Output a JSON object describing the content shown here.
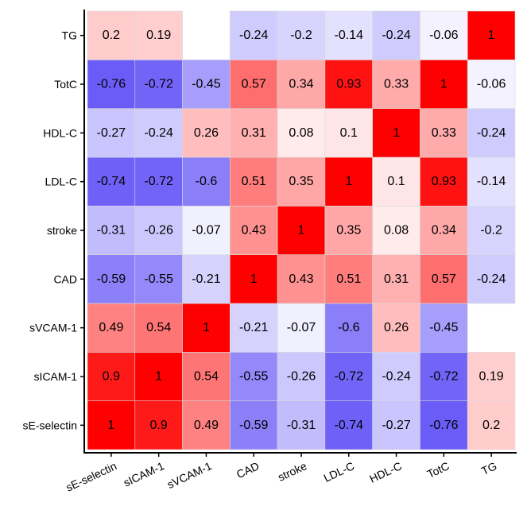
{
  "chart_data": {
    "type": "heatmap",
    "x": [
      "sE-selectin",
      "sICAM-1",
      "sVCAM-1",
      "CAD",
      "stroke",
      "LDL-C",
      "HDL-C",
      "TotC",
      "TG"
    ],
    "y": [
      "sE-selectin",
      "sICAM-1",
      "sVCAM-1",
      "CAD",
      "stroke",
      "LDL-C",
      "HDL-C",
      "TotC",
      "TG"
    ],
    "values": [
      [
        1,
        0.9,
        0.49,
        -0.59,
        -0.31,
        -0.74,
        -0.27,
        -0.76,
        0.2
      ],
      [
        0.9,
        1,
        0.54,
        -0.55,
        -0.26,
        -0.72,
        -0.24,
        -0.72,
        0.19
      ],
      [
        0.49,
        0.54,
        1,
        -0.21,
        -0.07,
        -0.6,
        0.26,
        -0.45,
        null
      ],
      [
        -0.59,
        -0.55,
        -0.21,
        1,
        0.43,
        0.51,
        0.31,
        0.57,
        -0.24
      ],
      [
        -0.31,
        -0.26,
        -0.07,
        0.43,
        1,
        0.35,
        0.08,
        0.34,
        -0.2
      ],
      [
        -0.74,
        -0.72,
        -0.6,
        0.51,
        0.35,
        1,
        0.1,
        0.93,
        -0.14
      ],
      [
        -0.27,
        -0.24,
        0.26,
        0.31,
        0.08,
        0.1,
        1,
        0.33,
        -0.24
      ],
      [
        -0.76,
        -0.72,
        -0.45,
        0.57,
        0.34,
        0.93,
        0.33,
        1,
        -0.06
      ],
      [
        0.2,
        0.19,
        null,
        -0.24,
        -0.2,
        -0.14,
        -0.24,
        -0.06,
        1
      ]
    ],
    "zlim": [
      -1,
      1
    ],
    "colors": {
      "low": "#3c28f5",
      "mid": "#ffffff",
      "high": "#ff0000"
    }
  }
}
